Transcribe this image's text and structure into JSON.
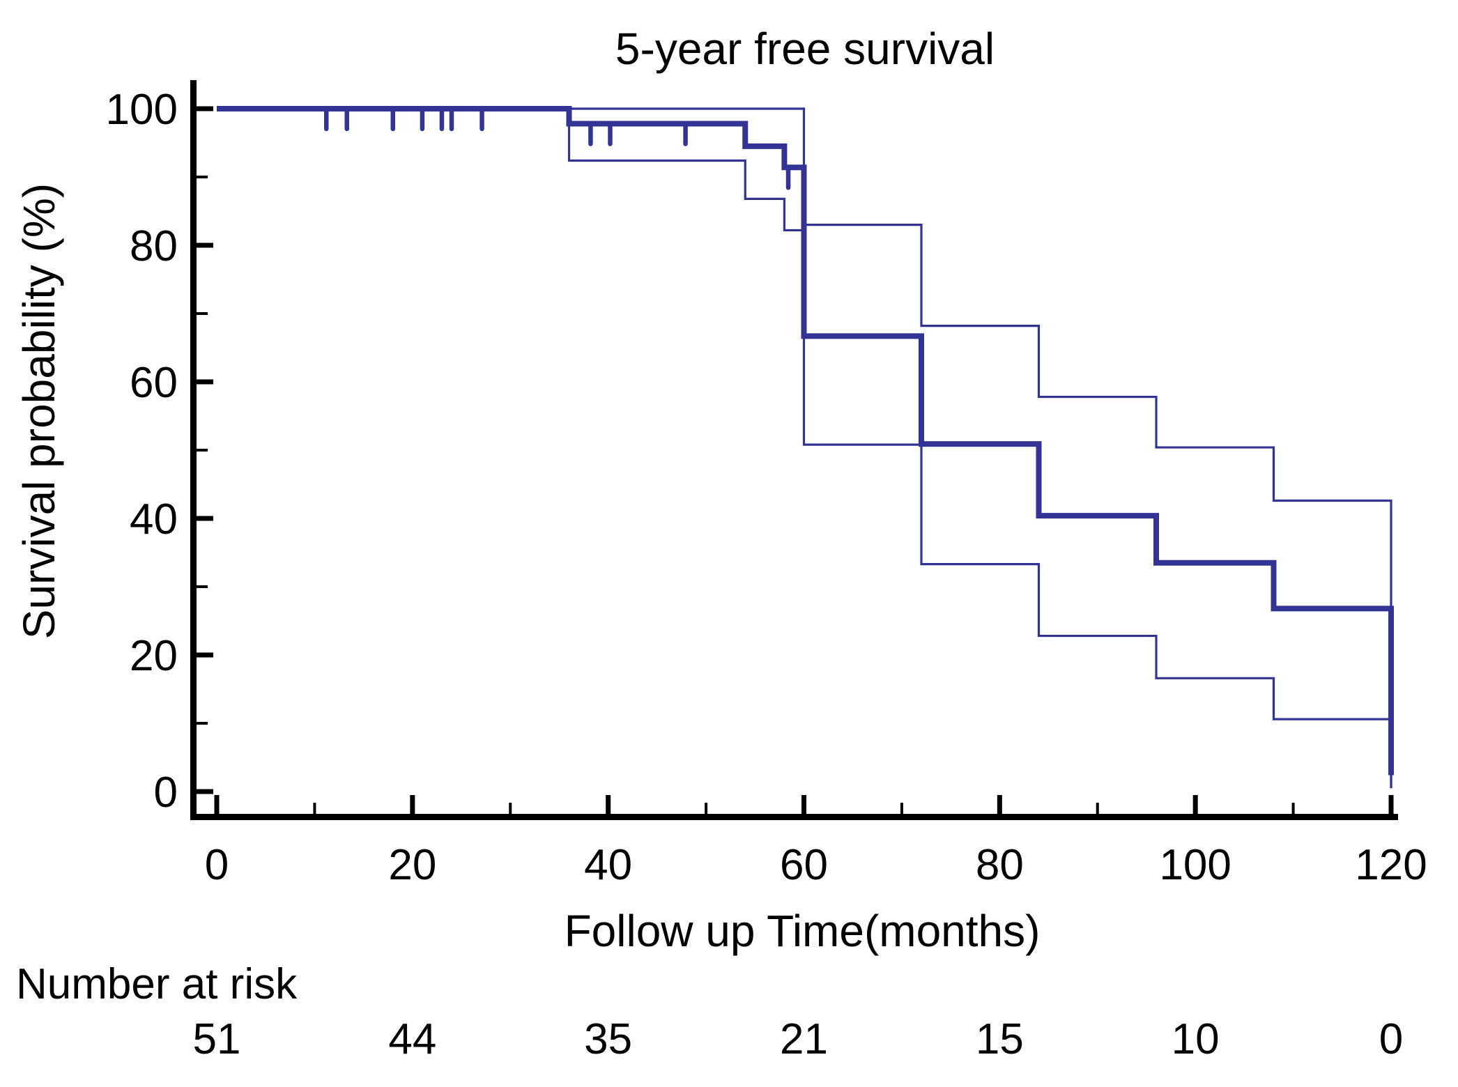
{
  "title": "5-year free survival",
  "axes": {
    "xlabel": "Follow up Time(months)",
    "ylabel": "Survival probability (%)",
    "x_major_ticks": [
      0,
      20,
      40,
      60,
      80,
      100,
      120
    ],
    "x_minor_ticks": [
      10,
      30,
      50,
      70,
      90,
      110
    ],
    "y_major_ticks": [
      100,
      80,
      60,
      40,
      20,
      0
    ],
    "y_minor_ticks": [
      90,
      70,
      50,
      30,
      10
    ],
    "xlim": [
      0,
      120
    ],
    "ylim": [
      0,
      100
    ]
  },
  "risk_table": {
    "label": "Number at risk",
    "times": [
      0,
      20,
      40,
      60,
      80,
      100,
      120
    ],
    "counts": [
      "51",
      "44",
      "35",
      "21",
      "15",
      "10",
      "0"
    ]
  },
  "colors": {
    "curve": "#333396",
    "risk_label_text": "#1b1b84",
    "axis": "#000000",
    "background": "#ffffff"
  },
  "chart_data": {
    "type": "line",
    "subtype": "kaplan-meier-step",
    "title": "5-year free survival",
    "xlabel": "Follow up Time(months)",
    "ylabel": "Survival probability (%)",
    "xlim": [
      0,
      120
    ],
    "ylim": [
      0,
      100
    ],
    "grid": false,
    "legend": "none",
    "series": [
      {
        "name": "survival-estimate",
        "style": "thick",
        "points": [
          [
            0,
            100
          ],
          [
            36,
            97.8
          ],
          [
            54,
            94.5
          ],
          [
            58,
            91.4
          ],
          [
            60,
            66.7
          ],
          [
            72,
            50.9
          ],
          [
            84,
            40.4
          ],
          [
            96,
            33.5
          ],
          [
            108,
            26.8
          ],
          [
            120,
            2.4
          ]
        ]
      },
      {
        "name": "upper-95ci",
        "style": "thin",
        "points": [
          [
            0,
            100
          ],
          [
            60,
            83.0
          ],
          [
            72,
            68.2
          ],
          [
            84,
            57.8
          ],
          [
            96,
            50.4
          ],
          [
            108,
            42.6
          ],
          [
            120,
            0.5
          ]
        ]
      },
      {
        "name": "lower-95ci",
        "style": "thin",
        "points": [
          [
            0,
            100
          ],
          [
            36,
            92.4
          ],
          [
            54,
            86.8
          ],
          [
            58,
            82.2
          ],
          [
            60,
            50.8
          ],
          [
            72,
            33.3
          ],
          [
            84,
            22.8
          ],
          [
            96,
            16.6
          ],
          [
            108,
            10.6
          ],
          [
            120,
            0.5
          ]
        ]
      }
    ],
    "censor_marks": [
      {
        "t": 11.2,
        "p": 100
      },
      {
        "t": 13.3,
        "p": 100
      },
      {
        "t": 18.0,
        "p": 100
      },
      {
        "t": 21.0,
        "p": 100
      },
      {
        "t": 23.0,
        "p": 100
      },
      {
        "t": 24.0,
        "p": 100
      },
      {
        "t": 27.1,
        "p": 100
      },
      {
        "t": 38.2,
        "p": 97.8
      },
      {
        "t": 40.2,
        "p": 97.8
      },
      {
        "t": 47.9,
        "p": 97.8
      },
      {
        "t": 58.4,
        "p": 91.4
      }
    ],
    "number_at_risk": {
      "label": "Number at risk",
      "times": [
        0,
        20,
        40,
        60,
        80,
        100,
        120
      ],
      "counts": [
        51,
        44,
        35,
        21,
        15,
        10,
        0
      ]
    }
  }
}
